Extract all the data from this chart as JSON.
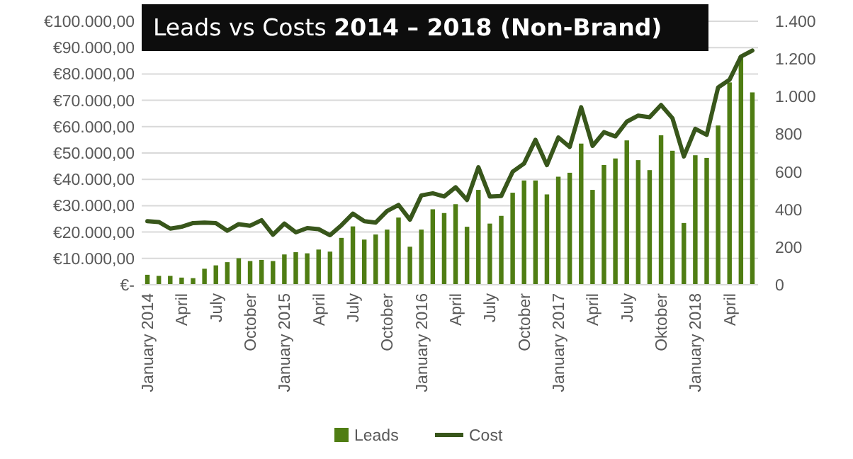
{
  "chart_data": {
    "type": "bar",
    "title": "Leads vs Costs 2014 – 2018 (Non-Brand)",
    "categories": [
      "January 2014",
      null,
      null,
      "April",
      null,
      null,
      "July",
      null,
      null,
      "October",
      null,
      null,
      "January 2015",
      null,
      null,
      "April",
      null,
      null,
      "July",
      null,
      null,
      "October",
      null,
      null,
      "January 2016",
      null,
      null,
      "April",
      null,
      null,
      "July",
      null,
      null,
      "October",
      null,
      null,
      "January 2017",
      null,
      null,
      "April",
      null,
      null,
      "July",
      null,
      null,
      "Oktober",
      null,
      null,
      "January 2018",
      null,
      null,
      "April",
      null,
      null
    ],
    "series": [
      {
        "name": "Leads",
        "axis": "y2",
        "color": "#4f7d13",
        "values": [
          53,
          47,
          47,
          38,
          35,
          85,
          103,
          120,
          141,
          126,
          132,
          126,
          161,
          173,
          167,
          187,
          176,
          249,
          310,
          240,
          267,
          293,
          357,
          202,
          293,
          401,
          381,
          428,
          308,
          504,
          325,
          366,
          489,
          554,
          554,
          480,
          574,
          595,
          750,
          504,
          636,
          671,
          767,
          662,
          609,
          794,
          712,
          328,
          688,
          674,
          846,
          1075,
          1216,
          1022
        ]
      },
      {
        "name": "Cost",
        "type": "line",
        "color": "#38561b",
        "values": [
          24100,
          23800,
          21300,
          22000,
          23400,
          23600,
          23400,
          20500,
          23000,
          22400,
          24500,
          19000,
          23200,
          19900,
          21500,
          21100,
          18800,
          22600,
          27000,
          24100,
          23600,
          28000,
          30300,
          24700,
          33900,
          34700,
          33500,
          37000,
          32200,
          44600,
          33500,
          33700,
          42900,
          46000,
          55000,
          45400,
          55900,
          52300,
          67400,
          52700,
          57900,
          56300,
          61900,
          64200,
          63600,
          68200,
          63200,
          48700,
          59200,
          56900,
          74900,
          77800,
          86600,
          88900
        ]
      }
    ],
    "ylim": [
      0,
      100000
    ],
    "yticks": [
      {
        "value": 0,
        "label": "€-"
      },
      {
        "value": 10000,
        "label": "€10.000,00"
      },
      {
        "value": 20000,
        "label": "€20.000,00"
      },
      {
        "value": 30000,
        "label": "€30.000,00"
      },
      {
        "value": 40000,
        "label": "€40.000,00"
      },
      {
        "value": 50000,
        "label": "€50.000,00"
      },
      {
        "value": 60000,
        "label": "€60.000,00"
      },
      {
        "value": 70000,
        "label": "€70.000,00"
      },
      {
        "value": 80000,
        "label": "€80.000,00"
      },
      {
        "value": 90000,
        "label": "€90.000,00"
      },
      {
        "value": 100000,
        "label": "€100.000,00"
      }
    ],
    "y2lim": [
      0,
      1400
    ],
    "y2ticks": [
      0,
      {
        "value": 200,
        "label": "200"
      },
      {
        "value": 400,
        "label": "400"
      },
      {
        "value": 600,
        "label": "600"
      },
      {
        "value": 800,
        "label": "800"
      },
      {
        "value": 1000,
        "label": "1.000"
      },
      {
        "value": 1200,
        "label": "1.200"
      },
      {
        "value": 1400,
        "label": "1.400"
      }
    ],
    "grid": "y",
    "legend": "bottom",
    "marker": "none",
    "line_style": "solid"
  }
}
